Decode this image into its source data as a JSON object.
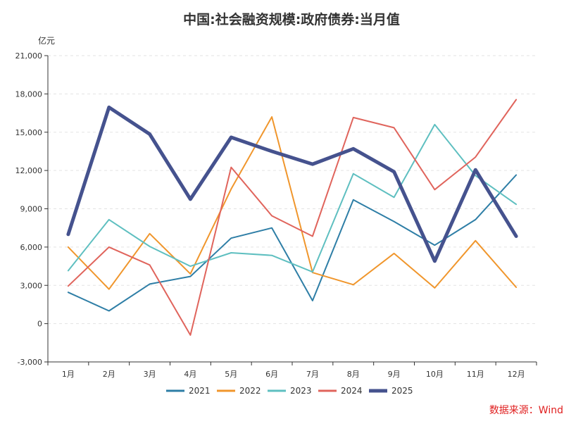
{
  "chart_data": {
    "type": "line",
    "title": "中国:社会融资规模:政府债券:当月值",
    "ylabel": "亿元",
    "xlabel": "",
    "ylim": [
      -3000,
      21000
    ],
    "yticks": [
      -3000,
      0,
      3000,
      6000,
      9000,
      12000,
      15000,
      18000,
      21000
    ],
    "ytick_labels": [
      "-3,000",
      "0",
      "3,000",
      "6,000",
      "9,000",
      "12,000",
      "15,000",
      "18,000",
      "21,000"
    ],
    "categories": [
      "1月",
      "2月",
      "3月",
      "4月",
      "5月",
      "6月",
      "7月",
      "8月",
      "9月",
      "10月",
      "11月",
      "12月"
    ],
    "grid": true,
    "legend_position": "bottom",
    "series": [
      {
        "name": "2021",
        "color": "#2e7ea6",
        "width": 2,
        "values": [
          2450,
          1000,
          3100,
          3700,
          6700,
          7500,
          1800,
          9700,
          8000,
          6150,
          8150,
          11650
        ]
      },
      {
        "name": "2022",
        "color": "#f0962c",
        "width": 2,
        "values": [
          6000,
          2700,
          7050,
          3900,
          10550,
          16200,
          4000,
          3050,
          5500,
          2800,
          6500,
          2850
        ]
      },
      {
        "name": "2023",
        "color": "#5ebfc0",
        "width": 2,
        "values": [
          4150,
          8150,
          6050,
          4500,
          5550,
          5350,
          4050,
          11750,
          9900,
          15600,
          11600,
          9350
        ]
      },
      {
        "name": "2024",
        "color": "#e0645c",
        "width": 2,
        "values": [
          2950,
          6000,
          4600,
          -900,
          12250,
          8450,
          6850,
          16150,
          15350,
          10500,
          13050,
          17550
        ]
      },
      {
        "name": "2025",
        "color": "#45528e",
        "width": 5,
        "values": [
          7000,
          16950,
          14850,
          9750,
          14600,
          13500,
          12500,
          13700,
          11900,
          4900,
          12050,
          6850
        ]
      }
    ]
  },
  "source": "数据来源：Wind"
}
